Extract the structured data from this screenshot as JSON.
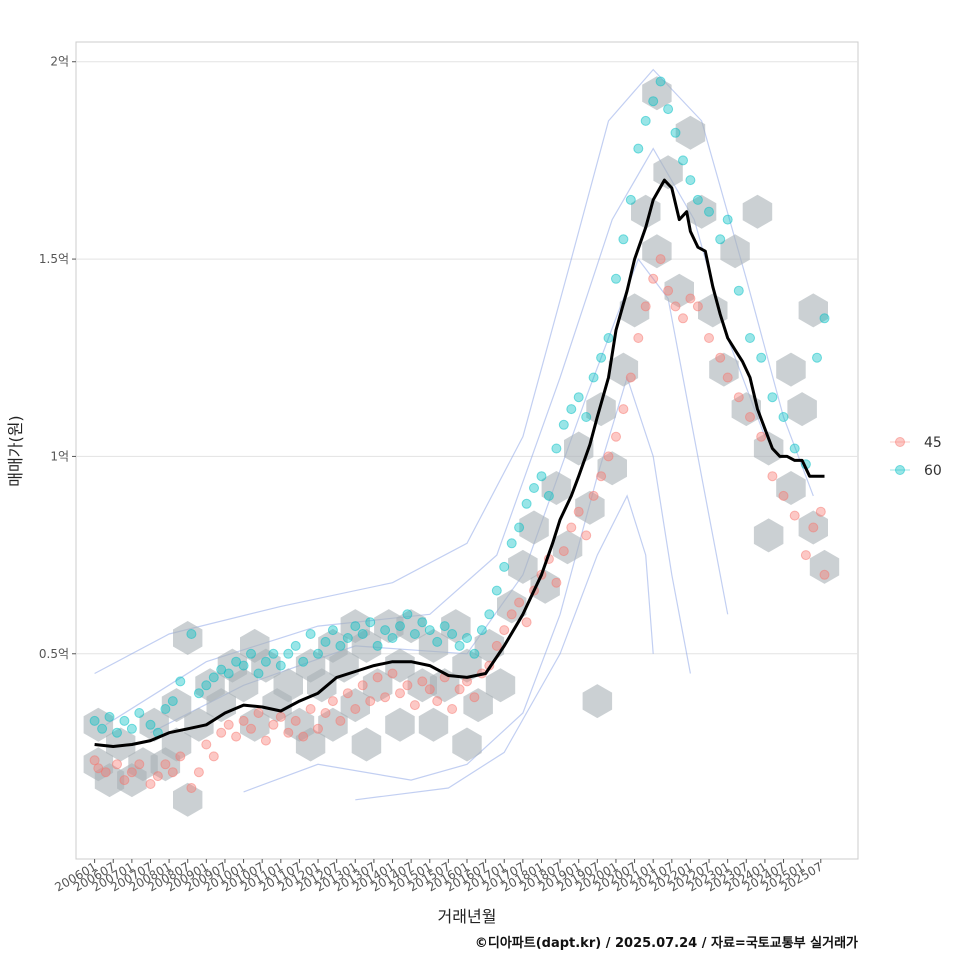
{
  "chart_data": {
    "type": "scatter",
    "xlabel": "거래년월",
    "ylabel": "매매가(원)",
    "caption": "©디아파트(dapt.kr) / 2025.07.24 / 자료=국토교통부 실거래가",
    "x_tick_labels": [
      "200601",
      "200607",
      "200701",
      "200707",
      "200801",
      "200807",
      "200901",
      "200907",
      "201001",
      "201007",
      "201101",
      "201107",
      "201201",
      "201207",
      "201301",
      "201307",
      "201401",
      "201407",
      "201501",
      "201507",
      "201601",
      "201607",
      "201701",
      "201707",
      "201801",
      "201807",
      "201901",
      "201907",
      "202001",
      "202007",
      "202101",
      "202107",
      "202201",
      "202207",
      "202301",
      "202307",
      "202401",
      "202407",
      "202501",
      "202507"
    ],
    "y_ticks": [
      {
        "value": 0.5,
        "label": "0.5억"
      },
      {
        "value": 1.0,
        "label": "1억"
      },
      {
        "value": 1.5,
        "label": "1.5억"
      },
      {
        "value": 2.0,
        "label": "2억"
      }
    ],
    "y_unit": "억",
    "xlim": [
      2005.5,
      2026.5
    ],
    "ylim": [
      -0.02,
      2.05
    ],
    "grid": true,
    "legend_position": "right",
    "series": [
      {
        "name": "45",
        "color": "#F8766D"
      },
      {
        "name": "60",
        "color": "#00BFC4"
      }
    ],
    "trend_line": {
      "color": "#000000",
      "x": [
        2006.0,
        2006.5,
        2007.0,
        2007.5,
        2008.0,
        2008.5,
        2009.0,
        2009.5,
        2010.0,
        2010.5,
        2011.0,
        2011.5,
        2012.0,
        2012.5,
        2013.0,
        2013.5,
        2014.0,
        2014.5,
        2015.0,
        2015.5,
        2016.0,
        2016.5,
        2017.0,
        2017.5,
        2017.8,
        2018.0,
        2018.3,
        2018.5,
        2018.8,
        2019.0,
        2019.3,
        2019.5,
        2019.8,
        2020.0,
        2020.3,
        2020.5,
        2020.8,
        2021.0,
        2021.3,
        2021.5,
        2021.7,
        2021.9,
        2022.0,
        2022.2,
        2022.4,
        2022.6,
        2022.8,
        2023.0,
        2023.2,
        2023.4,
        2023.6,
        2023.8,
        2024.0,
        2024.2,
        2024.4,
        2024.6,
        2024.8,
        2025.0,
        2025.2,
        2025.4,
        2025.6
      ],
      "y": [
        0.27,
        0.265,
        0.27,
        0.28,
        0.3,
        0.31,
        0.32,
        0.35,
        0.37,
        0.365,
        0.355,
        0.38,
        0.4,
        0.44,
        0.455,
        0.47,
        0.48,
        0.48,
        0.47,
        0.445,
        0.44,
        0.45,
        0.52,
        0.6,
        0.66,
        0.7,
        0.78,
        0.84,
        0.9,
        0.95,
        1.03,
        1.1,
        1.2,
        1.32,
        1.42,
        1.5,
        1.58,
        1.65,
        1.7,
        1.68,
        1.6,
        1.62,
        1.57,
        1.53,
        1.52,
        1.43,
        1.36,
        1.3,
        1.27,
        1.24,
        1.2,
        1.12,
        1.07,
        1.02,
        1.0,
        1.0,
        0.99,
        0.99,
        0.95,
        0.95,
        0.95
      ]
    },
    "points_45": [
      [
        2006.0,
        0.23
      ],
      [
        2006.1,
        0.21
      ],
      [
        2006.3,
        0.2
      ],
      [
        2006.6,
        0.22
      ],
      [
        2006.8,
        0.18
      ],
      [
        2007.0,
        0.2
      ],
      [
        2007.2,
        0.22
      ],
      [
        2007.5,
        0.17
      ],
      [
        2007.7,
        0.19
      ],
      [
        2007.9,
        0.22
      ],
      [
        2008.1,
        0.2
      ],
      [
        2008.3,
        0.24
      ],
      [
        2008.6,
        0.16
      ],
      [
        2008.8,
        0.2
      ],
      [
        2009.0,
        0.27
      ],
      [
        2009.2,
        0.24
      ],
      [
        2009.4,
        0.3
      ],
      [
        2009.6,
        0.32
      ],
      [
        2009.8,
        0.29
      ],
      [
        2010.0,
        0.33
      ],
      [
        2010.2,
        0.31
      ],
      [
        2010.4,
        0.35
      ],
      [
        2010.6,
        0.28
      ],
      [
        2010.8,
        0.32
      ],
      [
        2011.0,
        0.34
      ],
      [
        2011.2,
        0.3
      ],
      [
        2011.4,
        0.33
      ],
      [
        2011.6,
        0.29
      ],
      [
        2011.8,
        0.36
      ],
      [
        2012.0,
        0.31
      ],
      [
        2012.2,
        0.35
      ],
      [
        2012.4,
        0.38
      ],
      [
        2012.6,
        0.33
      ],
      [
        2012.8,
        0.4
      ],
      [
        2013.0,
        0.36
      ],
      [
        2013.2,
        0.42
      ],
      [
        2013.4,
        0.38
      ],
      [
        2013.6,
        0.44
      ],
      [
        2013.8,
        0.39
      ],
      [
        2014.0,
        0.45
      ],
      [
        2014.2,
        0.4
      ],
      [
        2014.4,
        0.42
      ],
      [
        2014.6,
        0.37
      ],
      [
        2014.8,
        0.43
      ],
      [
        2015.0,
        0.41
      ],
      [
        2015.2,
        0.38
      ],
      [
        2015.4,
        0.44
      ],
      [
        2015.6,
        0.36
      ],
      [
        2015.8,
        0.41
      ],
      [
        2016.0,
        0.43
      ],
      [
        2016.2,
        0.39
      ],
      [
        2016.4,
        0.45
      ],
      [
        2016.6,
        0.47
      ],
      [
        2016.8,
        0.52
      ],
      [
        2017.0,
        0.56
      ],
      [
        2017.2,
        0.6
      ],
      [
        2017.4,
        0.63
      ],
      [
        2017.6,
        0.58
      ],
      [
        2017.8,
        0.66
      ],
      [
        2018.0,
        0.7
      ],
      [
        2018.2,
        0.74
      ],
      [
        2018.4,
        0.68
      ],
      [
        2018.6,
        0.76
      ],
      [
        2018.8,
        0.82
      ],
      [
        2019.0,
        0.86
      ],
      [
        2019.2,
        0.8
      ],
      [
        2019.4,
        0.9
      ],
      [
        2019.6,
        0.95
      ],
      [
        2019.8,
        1.0
      ],
      [
        2020.0,
        1.05
      ],
      [
        2020.2,
        1.12
      ],
      [
        2020.4,
        1.2
      ],
      [
        2020.6,
        1.3
      ],
      [
        2020.8,
        1.38
      ],
      [
        2021.0,
        1.45
      ],
      [
        2021.2,
        1.5
      ],
      [
        2021.4,
        1.42
      ],
      [
        2021.6,
        1.38
      ],
      [
        2021.8,
        1.35
      ],
      [
        2022.0,
        1.4
      ],
      [
        2022.2,
        1.38
      ],
      [
        2022.5,
        1.3
      ],
      [
        2022.8,
        1.25
      ],
      [
        2023.0,
        1.2
      ],
      [
        2023.3,
        1.15
      ],
      [
        2023.6,
        1.1
      ],
      [
        2023.9,
        1.05
      ],
      [
        2024.2,
        0.95
      ],
      [
        2024.5,
        0.9
      ],
      [
        2024.8,
        0.85
      ],
      [
        2025.1,
        0.75
      ],
      [
        2025.3,
        0.82
      ],
      [
        2025.5,
        0.86
      ],
      [
        2025.6,
        0.7
      ]
    ],
    "points_60": [
      [
        2006.0,
        0.33
      ],
      [
        2006.2,
        0.31
      ],
      [
        2006.4,
        0.34
      ],
      [
        2006.6,
        0.3
      ],
      [
        2006.8,
        0.33
      ],
      [
        2007.0,
        0.31
      ],
      [
        2007.2,
        0.35
      ],
      [
        2007.5,
        0.32
      ],
      [
        2007.7,
        0.3
      ],
      [
        2007.9,
        0.36
      ],
      [
        2008.1,
        0.38
      ],
      [
        2008.3,
        0.43
      ],
      [
        2008.6,
        0.55
      ],
      [
        2008.8,
        0.4
      ],
      [
        2009.0,
        0.42
      ],
      [
        2009.2,
        0.44
      ],
      [
        2009.4,
        0.46
      ],
      [
        2009.6,
        0.45
      ],
      [
        2009.8,
        0.48
      ],
      [
        2010.0,
        0.47
      ],
      [
        2010.2,
        0.5
      ],
      [
        2010.4,
        0.45
      ],
      [
        2010.6,
        0.48
      ],
      [
        2010.8,
        0.5
      ],
      [
        2011.0,
        0.47
      ],
      [
        2011.2,
        0.5
      ],
      [
        2011.4,
        0.52
      ],
      [
        2011.6,
        0.48
      ],
      [
        2011.8,
        0.55
      ],
      [
        2012.0,
        0.5
      ],
      [
        2012.2,
        0.53
      ],
      [
        2012.4,
        0.56
      ],
      [
        2012.6,
        0.52
      ],
      [
        2012.8,
        0.54
      ],
      [
        2013.0,
        0.57
      ],
      [
        2013.2,
        0.55
      ],
      [
        2013.4,
        0.58
      ],
      [
        2013.6,
        0.52
      ],
      [
        2013.8,
        0.56
      ],
      [
        2014.0,
        0.54
      ],
      [
        2014.2,
        0.57
      ],
      [
        2014.4,
        0.6
      ],
      [
        2014.6,
        0.55
      ],
      [
        2014.8,
        0.58
      ],
      [
        2015.0,
        0.56
      ],
      [
        2015.2,
        0.53
      ],
      [
        2015.4,
        0.57
      ],
      [
        2015.6,
        0.55
      ],
      [
        2015.8,
        0.52
      ],
      [
        2016.0,
        0.54
      ],
      [
        2016.2,
        0.5
      ],
      [
        2016.4,
        0.56
      ],
      [
        2016.6,
        0.6
      ],
      [
        2016.8,
        0.66
      ],
      [
        2017.0,
        0.72
      ],
      [
        2017.2,
        0.78
      ],
      [
        2017.4,
        0.82
      ],
      [
        2017.6,
        0.88
      ],
      [
        2017.8,
        0.92
      ],
      [
        2018.0,
        0.95
      ],
      [
        2018.2,
        0.9
      ],
      [
        2018.4,
        1.02
      ],
      [
        2018.6,
        1.08
      ],
      [
        2018.8,
        1.12
      ],
      [
        2019.0,
        1.15
      ],
      [
        2019.2,
        1.1
      ],
      [
        2019.4,
        1.2
      ],
      [
        2019.6,
        1.25
      ],
      [
        2019.8,
        1.3
      ],
      [
        2020.0,
        1.45
      ],
      [
        2020.2,
        1.55
      ],
      [
        2020.4,
        1.65
      ],
      [
        2020.6,
        1.78
      ],
      [
        2020.8,
        1.85
      ],
      [
        2021.0,
        1.9
      ],
      [
        2021.2,
        1.95
      ],
      [
        2021.4,
        1.88
      ],
      [
        2021.6,
        1.82
      ],
      [
        2021.8,
        1.75
      ],
      [
        2022.0,
        1.7
      ],
      [
        2022.2,
        1.65
      ],
      [
        2022.5,
        1.62
      ],
      [
        2022.8,
        1.55
      ],
      [
        2023.0,
        1.6
      ],
      [
        2023.3,
        1.42
      ],
      [
        2023.6,
        1.3
      ],
      [
        2023.9,
        1.25
      ],
      [
        2024.2,
        1.15
      ],
      [
        2024.5,
        1.1
      ],
      [
        2024.8,
        1.02
      ],
      [
        2025.1,
        0.98
      ],
      [
        2025.4,
        1.25
      ],
      [
        2025.6,
        1.35
      ]
    ],
    "hexbins": [
      [
        2006.1,
        0.32
      ],
      [
        2006.1,
        0.22
      ],
      [
        2006.4,
        0.18
      ],
      [
        2006.7,
        0.27
      ],
      [
        2007.0,
        0.18
      ],
      [
        2007.3,
        0.22
      ],
      [
        2007.6,
        0.32
      ],
      [
        2007.9,
        0.22
      ],
      [
        2008.2,
        0.37
      ],
      [
        2008.2,
        0.27
      ],
      [
        2008.5,
        0.13
      ],
      [
        2008.8,
        0.32
      ],
      [
        2008.5,
        0.54
      ],
      [
        2009.1,
        0.42
      ],
      [
        2009.4,
        0.37
      ],
      [
        2009.7,
        0.47
      ],
      [
        2010.0,
        0.42
      ],
      [
        2010.3,
        0.52
      ],
      [
        2010.3,
        0.32
      ],
      [
        2010.6,
        0.47
      ],
      [
        2010.9,
        0.37
      ],
      [
        2011.2,
        0.42
      ],
      [
        2011.5,
        0.32
      ],
      [
        2011.8,
        0.47
      ],
      [
        2011.8,
        0.27
      ],
      [
        2012.1,
        0.42
      ],
      [
        2012.4,
        0.52
      ],
      [
        2012.4,
        0.32
      ],
      [
        2012.7,
        0.47
      ],
      [
        2013.0,
        0.57
      ],
      [
        2013.0,
        0.37
      ],
      [
        2013.3,
        0.52
      ],
      [
        2013.3,
        0.27
      ],
      [
        2013.6,
        0.42
      ],
      [
        2013.9,
        0.57
      ],
      [
        2014.2,
        0.47
      ],
      [
        2014.2,
        0.32
      ],
      [
        2014.5,
        0.57
      ],
      [
        2014.8,
        0.42
      ],
      [
        2015.1,
        0.52
      ],
      [
        2015.1,
        0.32
      ],
      [
        2015.4,
        0.42
      ],
      [
        2015.7,
        0.57
      ],
      [
        2016.0,
        0.47
      ],
      [
        2016.0,
        0.27
      ],
      [
        2016.3,
        0.37
      ],
      [
        2016.6,
        0.52
      ],
      [
        2016.9,
        0.42
      ],
      [
        2017.2,
        0.62
      ],
      [
        2017.5,
        0.72
      ],
      [
        2017.8,
        0.82
      ],
      [
        2018.1,
        0.67
      ],
      [
        2018.4,
        0.92
      ],
      [
        2018.7,
        0.77
      ],
      [
        2019.0,
        1.02
      ],
      [
        2019.3,
        0.87
      ],
      [
        2019.6,
        1.12
      ],
      [
        2019.9,
        0.97
      ],
      [
        2020.2,
        1.22
      ],
      [
        2020.5,
        1.37
      ],
      [
        2020.8,
        1.62
      ],
      [
        2021.1,
        1.92
      ],
      [
        2021.1,
        1.52
      ],
      [
        2021.4,
        1.72
      ],
      [
        2021.7,
        1.42
      ],
      [
        2022.0,
        1.82
      ],
      [
        2022.3,
        1.62
      ],
      [
        2022.6,
        1.37
      ],
      [
        2022.9,
        1.22
      ],
      [
        2023.2,
        1.52
      ],
      [
        2023.5,
        1.12
      ],
      [
        2023.8,
        1.62
      ],
      [
        2024.1,
        1.02
      ],
      [
        2024.1,
        0.8
      ],
      [
        2024.7,
        0.92
      ],
      [
        2024.7,
        1.22
      ],
      [
        2025.0,
        1.12
      ],
      [
        2025.3,
        0.82
      ],
      [
        2025.3,
        1.37
      ],
      [
        2025.6,
        0.72
      ],
      [
        2019.5,
        0.38
      ]
    ],
    "contours": [
      [
        [
          2006.0,
          0.45
        ],
        [
          2008.0,
          0.55
        ],
        [
          2011.0,
          0.62
        ],
        [
          2014.0,
          0.68
        ],
        [
          2016.0,
          0.78
        ],
        [
          2017.5,
          1.05
        ],
        [
          2018.8,
          1.5
        ],
        [
          2019.8,
          1.85
        ],
        [
          2021.0,
          1.98
        ],
        [
          2022.3,
          1.85
        ],
        [
          2023.5,
          1.45
        ],
        [
          2024.5,
          1.1
        ],
        [
          2025.3,
          0.9
        ]
      ],
      [
        [
          2006.3,
          0.32
        ],
        [
          2009.0,
          0.48
        ],
        [
          2012.0,
          0.57
        ],
        [
          2015.0,
          0.6
        ],
        [
          2016.8,
          0.75
        ],
        [
          2018.5,
          1.2
        ],
        [
          2019.9,
          1.6
        ],
        [
          2021.0,
          1.78
        ],
        [
          2022.1,
          1.6
        ],
        [
          2023.0,
          1.3
        ],
        [
          2024.0,
          1.05
        ]
      ],
      [
        [
          2007.5,
          0.3
        ],
        [
          2010.0,
          0.42
        ],
        [
          2013.0,
          0.52
        ],
        [
          2016.0,
          0.5
        ],
        [
          2017.5,
          0.7
        ],
        [
          2019.2,
          1.15
        ],
        [
          2020.6,
          1.5
        ],
        [
          2021.4,
          1.4
        ],
        [
          2022.0,
          1.1
        ],
        [
          2022.5,
          0.85
        ],
        [
          2023.0,
          0.6
        ]
      ],
      [
        [
          2010.0,
          0.15
        ],
        [
          2012.0,
          0.22
        ],
        [
          2014.5,
          0.18
        ],
        [
          2016.0,
          0.22
        ],
        [
          2017.5,
          0.35
        ],
        [
          2018.5,
          0.6
        ],
        [
          2019.5,
          0.95
        ],
        [
          2020.3,
          1.2
        ],
        [
          2021.0,
          1.0
        ],
        [
          2021.5,
          0.7
        ],
        [
          2022.0,
          0.45
        ]
      ],
      [
        [
          2013.0,
          0.13
        ],
        [
          2015.5,
          0.16
        ],
        [
          2017.0,
          0.25
        ],
        [
          2018.5,
          0.5
        ],
        [
          2019.5,
          0.75
        ],
        [
          2020.3,
          0.9
        ],
        [
          2020.8,
          0.75
        ],
        [
          2021.0,
          0.5
        ]
      ]
    ]
  }
}
